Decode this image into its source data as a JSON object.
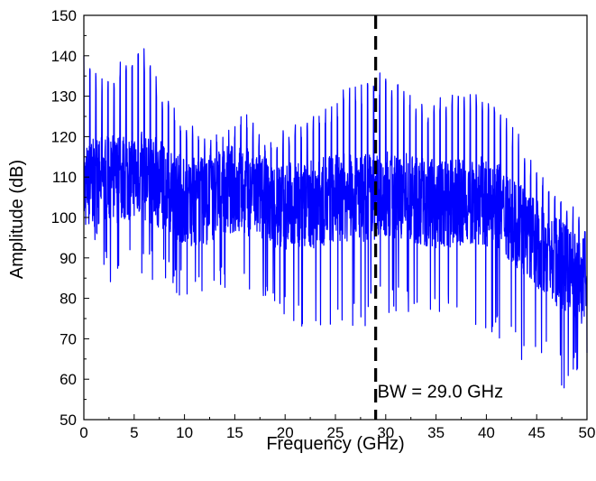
{
  "chart_data": {
    "type": "line",
    "xlabel": "Frequency (GHz)",
    "ylabel": "Amplitude (dB)",
    "xlim": [
      0,
      50
    ],
    "ylim": [
      50,
      150
    ],
    "x_ticks": [
      0,
      5,
      10,
      15,
      20,
      25,
      30,
      35,
      40,
      45,
      50
    ],
    "y_ticks": [
      50,
      60,
      70,
      80,
      90,
      100,
      110,
      120,
      130,
      140,
      150
    ],
    "grid": false,
    "legend": "none",
    "series": [
      {
        "color": "#0000ff",
        "comb_spacing_ghz": 0.6,
        "envelope": {
          "x": [
            0,
            2,
            4,
            5,
            6,
            8,
            10,
            12,
            14,
            16,
            18,
            20,
            22,
            24,
            26,
            28,
            30,
            32,
            34,
            36,
            38,
            40,
            42,
            44,
            46,
            48,
            50
          ],
          "baseline": [
            108,
            109,
            110,
            111,
            110,
            108,
            104,
            104,
            107,
            107,
            104,
            103,
            103,
            104,
            105,
            105,
            106,
            105,
            104,
            103,
            104,
            104,
            101,
            96,
            91,
            87,
            84
          ],
          "peaks": [
            140,
            135,
            140,
            143,
            142,
            130,
            124,
            121,
            121,
            127,
            121,
            122,
            124,
            128,
            132,
            133,
            137,
            131,
            129,
            130,
            131,
            131,
            126,
            117,
            110,
            104,
            101
          ],
          "troughs": [
            94,
            86,
            80,
            87,
            85,
            82,
            80,
            80,
            80,
            80,
            76,
            73,
            70,
            70,
            70,
            73,
            76,
            76,
            77,
            76,
            72,
            70,
            69,
            62,
            62,
            57,
            62
          ]
        }
      }
    ],
    "marker_line": {
      "x": 29.0,
      "style": "dashed",
      "color": "#000000"
    },
    "annotations": [
      {
        "text": "BW = 29.0 GHz",
        "x": 29.0,
        "y": 57
      }
    ]
  }
}
